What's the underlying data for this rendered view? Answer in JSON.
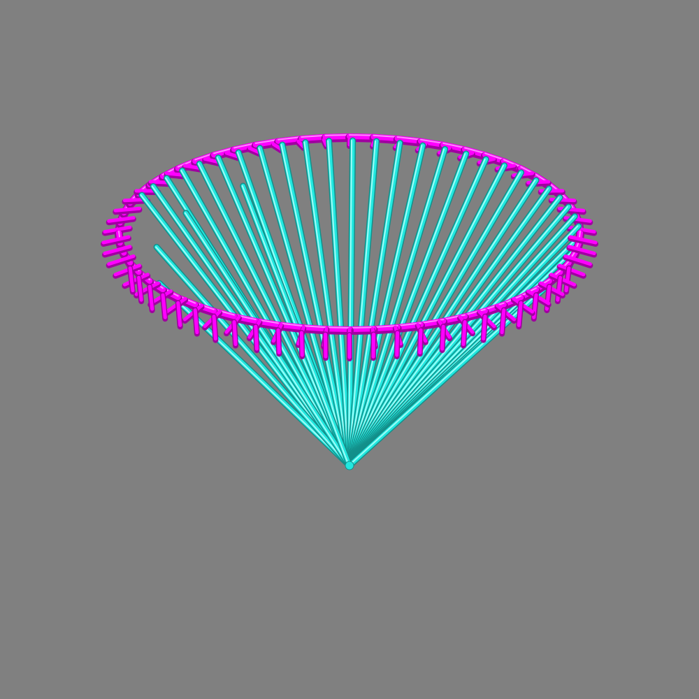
{
  "scene": {
    "background_color": "#808080",
    "spoke_color": "#22e8e0",
    "spoke_highlight_color": "#9ffcf6",
    "spoke_shadow_color": "#138f8a",
    "ring_color": "#ff00ff",
    "ring_highlight_color": "#ff88ff",
    "ring_shadow_color": "#a000a0",
    "spoke_count": 30,
    "ring_segment_count": 60
  }
}
